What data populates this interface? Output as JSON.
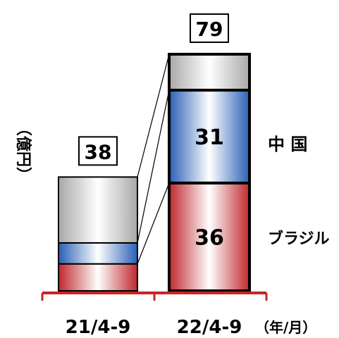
{
  "chart_data": {
    "type": "bar",
    "stacked": true,
    "categories": [
      "21/4-9",
      "22/4-9"
    ],
    "ylabel": "（億円）",
    "xunit": "（年/月）",
    "totals": [
      38,
      79
    ],
    "series": [
      {
        "name": "ブラジル",
        "values": [
          9,
          36
        ],
        "color": "#c0272d",
        "printed": [
          false,
          true
        ]
      },
      {
        "name": "中 国",
        "values": [
          7,
          31
        ],
        "color": "#2a5fb6",
        "printed": [
          false,
          true
        ]
      },
      {
        "name": "",
        "values": [
          22,
          12
        ],
        "color": "#a8a8a8",
        "printed": [
          false,
          false
        ]
      }
    ],
    "ylim": [
      0,
      90
    ],
    "grid": false,
    "legend": "right, next to the second bar",
    "axis_color": "#cc2222",
    "total_box_color": "#000000"
  }
}
